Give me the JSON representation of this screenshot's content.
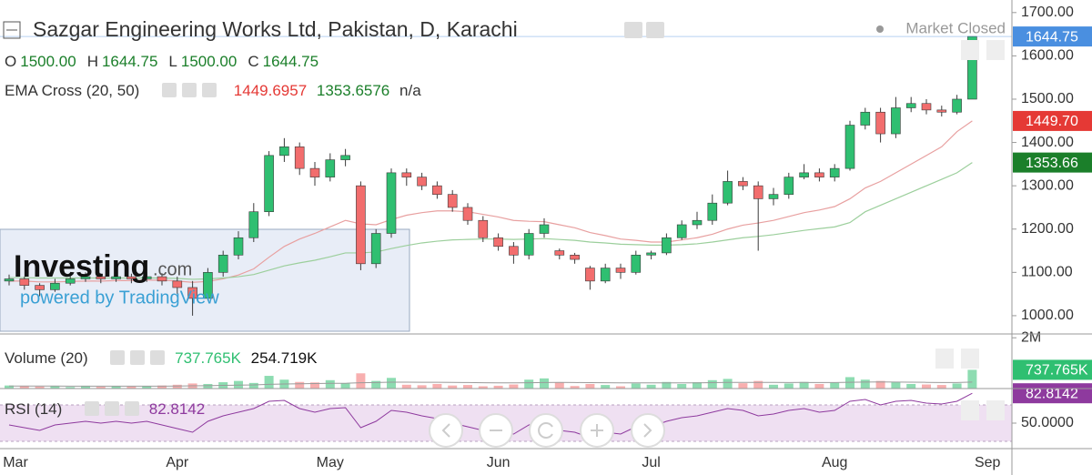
{
  "header": {
    "title": "Sazgar Engineering Works Ltd, Pakistan, D, Karachi",
    "status": "Market Closed",
    "ohlc": [
      {
        "key": "O",
        "value": "1500.00"
      },
      {
        "key": "H",
        "value": "1644.75"
      },
      {
        "key": "L",
        "value": "1500.00"
      },
      {
        "key": "C",
        "value": "1644.75"
      }
    ],
    "indicator": "EMA Cross (20, 50)",
    "indicator_extra": "n/a"
  },
  "watermark": {
    "brand": "Investing",
    "domain": ".com",
    "tagline": "powered by TradingView"
  },
  "chart_data": {
    "type": "candlestick",
    "categories": [
      "Mar",
      null,
      null,
      null,
      null,
      null,
      null,
      null,
      null,
      null,
      null,
      "Apr",
      null,
      null,
      null,
      null,
      null,
      null,
      null,
      null,
      null,
      "May",
      null,
      null,
      null,
      null,
      null,
      null,
      null,
      null,
      null,
      null,
      "Jun",
      null,
      null,
      null,
      null,
      null,
      null,
      null,
      null,
      null,
      "Jul",
      null,
      null,
      null,
      null,
      null,
      null,
      null,
      null,
      null,
      null,
      null,
      "Aug",
      null,
      null,
      null,
      null,
      null,
      null,
      null,
      null,
      null,
      "Sep"
    ],
    "open": [
      1080,
      1085,
      1070,
      1060,
      1075,
      1085,
      1090,
      1085,
      1090,
      1085,
      1090,
      1080,
      1065,
      1040,
      1100,
      1140,
      1180,
      1240,
      1370,
      1390,
      1340,
      1320,
      1360,
      1300,
      1120,
      1190,
      1330,
      1320,
      1300,
      1280,
      1250,
      1220,
      1180,
      1160,
      1140,
      1190,
      1150,
      1140,
      1110,
      1080,
      1110,
      1100,
      1140,
      1145,
      1180,
      1210,
      1220,
      1260,
      1310,
      1300,
      1270,
      1280,
      1320,
      1330,
      1320,
      1340,
      1440,
      1470,
      1420,
      1480,
      1490,
      1475,
      1470,
      1500,
      null
    ],
    "high": [
      1095,
      1090,
      1075,
      1085,
      1095,
      1100,
      1098,
      1100,
      1097,
      1100,
      1098,
      1090,
      1080,
      1110,
      1150,
      1195,
      1260,
      1380,
      1410,
      1400,
      1355,
      1375,
      1385,
      1310,
      1200,
      1340,
      1340,
      1330,
      1310,
      1290,
      1260,
      1230,
      1190,
      1170,
      1200,
      1225,
      1155,
      1145,
      1115,
      1120,
      1120,
      1150,
      1150,
      1190,
      1220,
      1240,
      1280,
      1335,
      1320,
      1310,
      1295,
      1330,
      1350,
      1340,
      1350,
      1450,
      1480,
      1480,
      1505,
      1505,
      1500,
      1485,
      1510,
      1644.75,
      null
    ],
    "low": [
      1070,
      1060,
      1045,
      1055,
      1070,
      1078,
      1075,
      1078,
      1075,
      1078,
      1070,
      1050,
      1000,
      1035,
      1090,
      1130,
      1170,
      1230,
      1355,
      1325,
      1300,
      1310,
      1345,
      1105,
      1110,
      1180,
      1300,
      1290,
      1270,
      1240,
      1210,
      1170,
      1150,
      1120,
      1130,
      1180,
      1130,
      1120,
      1060,
      1075,
      1085,
      1095,
      1130,
      1140,
      1175,
      1200,
      1210,
      1255,
      1290,
      1150,
      1255,
      1270,
      1315,
      1310,
      1310,
      1335,
      1430,
      1400,
      1410,
      1470,
      1465,
      1460,
      1465,
      1500,
      null
    ],
    "close": [
      1085,
      1070,
      1060,
      1075,
      1085,
      1090,
      1085,
      1090,
      1085,
      1090,
      1080,
      1065,
      1040,
      1100,
      1140,
      1180,
      1240,
      1370,
      1390,
      1340,
      1320,
      1360,
      1370,
      1120,
      1190,
      1330,
      1320,
      1300,
      1280,
      1250,
      1220,
      1180,
      1160,
      1140,
      1190,
      1210,
      1140,
      1130,
      1080,
      1110,
      1100,
      1140,
      1145,
      1180,
      1210,
      1220,
      1260,
      1310,
      1300,
      1270,
      1280,
      1320,
      1330,
      1320,
      1340,
      1440,
      1470,
      1420,
      1480,
      1490,
      1475,
      1470,
      1500,
      1644.75,
      null
    ],
    "up_color": "#2fbf71",
    "down_color": "#f26d6d",
    "wick_color": "#3a3a3a",
    "ylim": [
      962,
      1729
    ],
    "yticks": [
      {
        "value": 1000,
        "label": "1000.00"
      },
      {
        "value": 1100,
        "label": "1100.00"
      },
      {
        "value": 1200,
        "label": "1200.00"
      },
      {
        "value": 1300,
        "label": "1300.00"
      },
      {
        "value": 1400,
        "label": "1400.00"
      },
      {
        "value": 1500,
        "label": "1500.00"
      },
      {
        "value": 1600,
        "label": "1600.00"
      },
      {
        "value": 1700,
        "label": "1700.00"
      }
    ],
    "series": [
      {
        "name": "EMA 20",
        "color": "#e8a0a0",
        "values": [
          1080,
          1080,
          1078,
          1078,
          1079,
          1080,
          1080,
          1081,
          1081,
          1082,
          1082,
          1080,
          1077,
          1079,
          1085,
          1094,
          1108,
          1135,
          1160,
          1177,
          1190,
          1205,
          1220,
          1212,
          1210,
          1222,
          1232,
          1238,
          1242,
          1242,
          1240,
          1234,
          1228,
          1220,
          1218,
          1217,
          1210,
          1203,
          1192,
          1185,
          1177,
          1174,
          1170,
          1170,
          1175,
          1180,
          1188,
          1200,
          1209,
          1214,
          1220,
          1229,
          1238,
          1244,
          1252,
          1270,
          1295,
          1310,
          1330,
          1350,
          1370,
          1390,
          1425,
          1449.6957,
          null
        ]
      },
      {
        "name": "EMA 50",
        "color": "#9ccf9c",
        "values": [
          1088,
          1088,
          1087,
          1087,
          1087,
          1087,
          1087,
          1087,
          1087,
          1087,
          1087,
          1086,
          1084,
          1085,
          1087,
          1090,
          1095,
          1105,
          1115,
          1122,
          1128,
          1136,
          1145,
          1145,
          1147,
          1155,
          1162,
          1168,
          1172,
          1175,
          1176,
          1177,
          1177,
          1176,
          1177,
          1178,
          1176,
          1174,
          1170,
          1168,
          1165,
          1164,
          1163,
          1163,
          1164,
          1166,
          1170,
          1175,
          1180,
          1183,
          1187,
          1192,
          1197,
          1201,
          1205,
          1215,
          1240,
          1255,
          1270,
          1285,
          1300,
          1315,
          1330,
          1353.6576,
          null
        ]
      }
    ],
    "badges": [
      {
        "value": 1644.75,
        "label": "1644.75",
        "color": "#4a8fe0"
      },
      {
        "value": 1449.7,
        "label": "1449.70",
        "color": "#e53935"
      },
      {
        "value": 1353.66,
        "label": "1353.66",
        "color": "#1b7f2a"
      }
    ],
    "volume": {
      "title": "Volume (20)",
      "legend": [
        "737.765K",
        "254.719K"
      ],
      "legend_colors": [
        "#2fbf71",
        "#111111"
      ],
      "values": [
        120,
        90,
        80,
        100,
        60,
        110,
        70,
        90,
        80,
        100,
        120,
        150,
        200,
        180,
        250,
        300,
        220,
        500,
        350,
        260,
        240,
        330,
        200,
        600,
        300,
        420,
        150,
        130,
        180,
        120,
        140,
        90,
        110,
        160,
        350,
        400,
        250,
        100,
        180,
        140,
        90,
        200,
        150,
        260,
        180,
        250,
        330,
        380,
        210,
        300,
        150,
        200,
        260,
        180,
        230,
        450,
        350,
        300,
        250,
        180,
        160,
        140,
        200,
        737.765,
        null
      ],
      "ma": [
        100,
        100,
        98,
        98,
        96,
        96,
        95,
        95,
        94,
        94,
        96,
        100,
        108,
        114,
        124,
        136,
        144,
        166,
        180,
        188,
        196,
        206,
        208,
        230,
        238,
        250,
        250,
        248,
        246,
        240,
        236,
        230,
        226,
        222,
        230,
        238,
        240,
        236,
        232,
        228,
        222,
        224,
        222,
        226,
        224,
        226,
        232,
        240,
        240,
        244,
        240,
        238,
        240,
        236,
        236,
        246,
        254,
        258,
        256,
        250,
        244,
        238,
        236,
        254.719,
        null
      ],
      "ma_color": "#9a9a9a",
      "ylim": [
        0,
        2150
      ],
      "yticks": [
        {
          "value": 2000,
          "label": "2M"
        }
      ],
      "badge": {
        "value": 737.765,
        "label": "737.765K",
        "color": "#2fbf71"
      }
    },
    "rsi": {
      "title": "RSI (14)",
      "color": "#8e3a9e",
      "values": [
        48,
        45,
        42,
        48,
        50,
        52,
        50,
        52,
        50,
        52,
        48,
        44,
        40,
        52,
        58,
        62,
        66,
        74,
        75,
        66,
        62,
        66,
        67,
        45,
        52,
        64,
        62,
        58,
        55,
        50,
        46,
        42,
        40,
        38,
        48,
        52,
        42,
        40,
        34,
        40,
        38,
        46,
        46,
        52,
        56,
        58,
        62,
        66,
        64,
        58,
        60,
        64,
        66,
        62,
        64,
        74,
        76,
        70,
        74,
        75,
        72,
        71,
        74,
        82.8142,
        null
      ],
      "ylim": [
        22,
        88
      ],
      "yticks": [
        {
          "value": 50,
          "label": "50.0000"
        }
      ],
      "levels": [
        30,
        70
      ],
      "badge": {
        "value": 82.8142,
        "label": "82.8142",
        "color": "#8e3a9e"
      }
    }
  }
}
